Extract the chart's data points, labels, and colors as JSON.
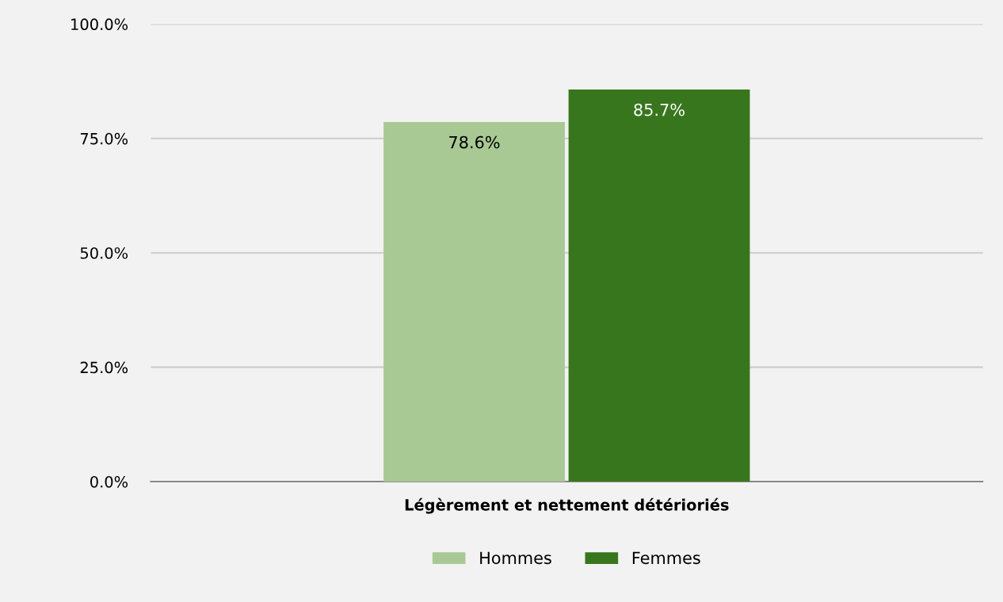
{
  "chart_data": {
    "type": "bar",
    "categories": [
      "Légèrement et nettement détérioriés"
    ],
    "series": [
      {
        "name": "Hommes",
        "color": "#a9c994",
        "values": [
          78.6
        ],
        "value_labels": [
          "78.6%"
        ]
      },
      {
        "name": "Femmes",
        "color": "#38761d",
        "values": [
          85.7
        ],
        "value_labels": [
          "85.7%"
        ]
      }
    ],
    "ylim": [
      0,
      100
    ],
    "yticks": [
      {
        "value": 0,
        "label": "0.0%"
      },
      {
        "value": 25,
        "label": "25.0%"
      },
      {
        "value": 50,
        "label": "50.0%"
      },
      {
        "value": 75,
        "label": "75.0%"
      },
      {
        "value": 100,
        "label": "100.0%"
      }
    ],
    "grid": "y",
    "legend": "bottom"
  }
}
